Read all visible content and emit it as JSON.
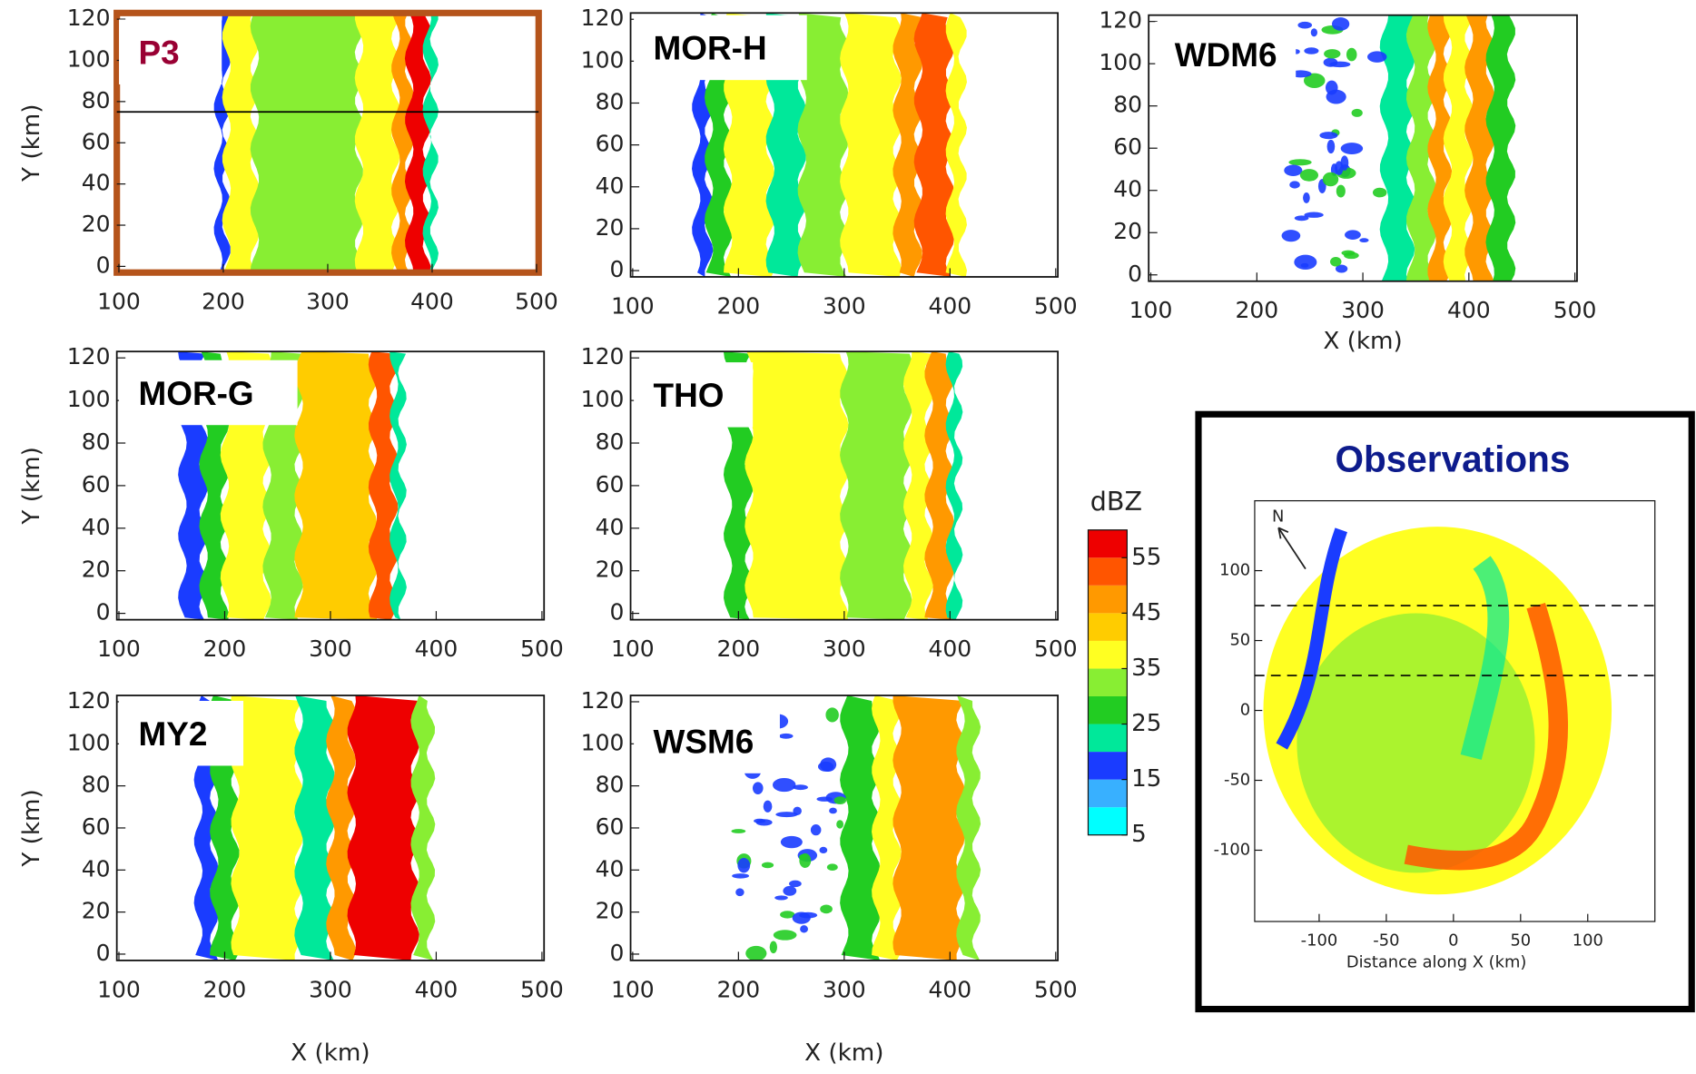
{
  "chart_data": [
    {
      "type": "contour",
      "label": "P3",
      "ylabel": "Y (km)",
      "xlim": [
        98,
        502
      ],
      "ylim": [
        -3,
        123
      ],
      "xticks": [
        100,
        200,
        300,
        400,
        500
      ],
      "yticks": [
        0,
        20,
        40,
        60,
        80,
        100,
        120
      ],
      "line_y": 75
    },
    {
      "type": "contour",
      "label": "MOR-H",
      "xlim": [
        98,
        502
      ],
      "ylim": [
        -3,
        123
      ],
      "xticks": [
        100,
        200,
        300,
        400,
        500
      ],
      "yticks": [
        0,
        20,
        40,
        60,
        80,
        100,
        120
      ]
    },
    {
      "type": "contour",
      "label": "WDM6",
      "xlabel": "X (km)",
      "xlim": [
        98,
        502
      ],
      "ylim": [
        -3,
        123
      ],
      "xticks": [
        100,
        200,
        300,
        400,
        500
      ],
      "yticks": [
        0,
        20,
        40,
        60,
        80,
        100,
        120
      ]
    },
    {
      "type": "contour",
      "label": "MOR-G",
      "ylabel": "Y (km)",
      "xlim": [
        98,
        502
      ],
      "ylim": [
        -3,
        123
      ],
      "xticks": [
        100,
        200,
        300,
        400,
        500
      ],
      "yticks": [
        0,
        20,
        40,
        60,
        80,
        100,
        120
      ]
    },
    {
      "type": "contour",
      "label": "THO",
      "xlim": [
        98,
        502
      ],
      "ylim": [
        -3,
        123
      ],
      "xticks": [
        100,
        200,
        300,
        400,
        500
      ],
      "yticks": [
        0,
        20,
        40,
        60,
        80,
        100,
        120
      ]
    },
    {
      "type": "contour",
      "label": "MY2",
      "ylabel": "Y (km)",
      "xlabel": "X (km)",
      "xlim": [
        98,
        502
      ],
      "ylim": [
        -3,
        123
      ],
      "xticks": [
        100,
        200,
        300,
        400,
        500
      ],
      "yticks": [
        0,
        20,
        40,
        60,
        80,
        100,
        120
      ]
    },
    {
      "type": "contour",
      "label": "WSM6",
      "xlabel": "X (km)",
      "xlim": [
        98,
        502
      ],
      "ylim": [
        -3,
        123
      ],
      "xticks": [
        100,
        200,
        300,
        400,
        500
      ],
      "yticks": [
        0,
        20,
        40,
        60,
        80,
        100,
        120
      ]
    },
    {
      "type": "colorbar",
      "label": "dBZ",
      "levels": [
        5,
        10,
        15,
        20,
        25,
        30,
        35,
        40,
        45,
        50,
        55,
        60
      ],
      "colors": [
        "#00ffff",
        "#38b0ff",
        "#1a3cff",
        "#00e89a",
        "#22cc22",
        "#88ee33",
        "#ffff22",
        "#ffcc00",
        "#ff9900",
        "#ff5500",
        "#ee0000"
      ],
      "ticks": [
        5,
        15,
        25,
        35,
        45,
        55
      ]
    },
    {
      "type": "ppi",
      "title": "Observations",
      "xlabel": "Distance along X (km)",
      "north": "N",
      "xlim": [
        -148,
        150
      ],
      "ylim": [
        -151,
        150
      ],
      "xticks": [
        -100,
        -50,
        0,
        50,
        100
      ],
      "yticks": [
        -100,
        -50,
        0,
        50,
        100
      ],
      "dashed_y": [
        75,
        25
      ]
    }
  ]
}
